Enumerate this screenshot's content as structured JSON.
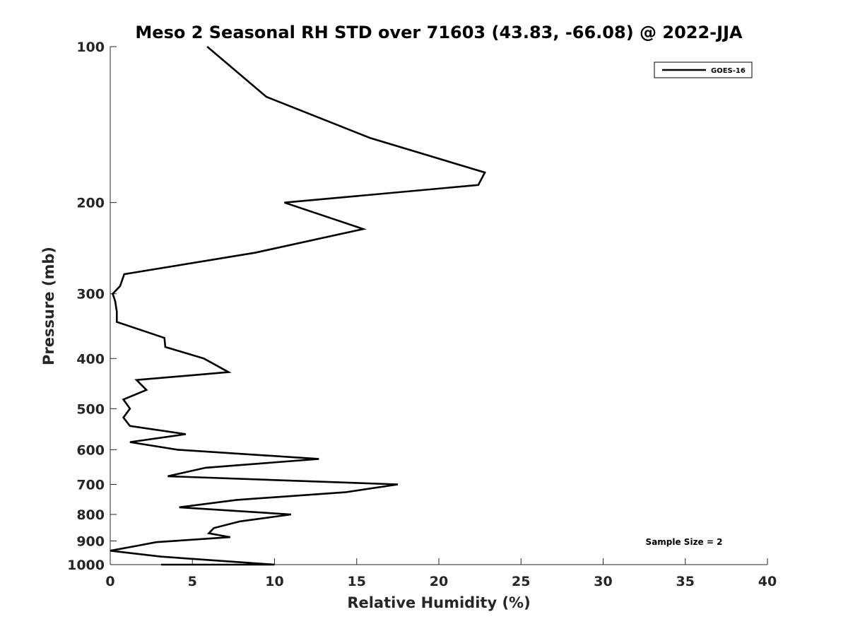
{
  "chart_data": {
    "type": "line",
    "title": "Meso 2 Seasonal RH STD over 71603 (43.83, -66.08) @ 2022-JJA",
    "xlabel": "Relative Humidity (%)",
    "ylabel": "Pressure (mb)",
    "xlim": [
      0,
      40
    ],
    "ylim": [
      100,
      1000
    ],
    "y_scale": "log",
    "y_reversed": true,
    "x_ticks": [
      0,
      5,
      10,
      15,
      20,
      25,
      30,
      35,
      40
    ],
    "y_ticks": [
      100,
      200,
      300,
      400,
      500,
      600,
      700,
      800,
      900,
      1000
    ],
    "grid": false,
    "legend": {
      "placement": "top-right",
      "entries": [
        "GOES-16"
      ]
    },
    "annotation": "Sample Size = 2",
    "series": [
      {
        "name": "GOES-16",
        "color": "#000000",
        "points": [
          [
            5.9,
            100
          ],
          [
            9.5,
            125
          ],
          [
            15.8,
            150
          ],
          [
            22.8,
            175
          ],
          [
            22.4,
            185
          ],
          [
            10.6,
            200
          ],
          [
            15.4,
            225
          ],
          [
            8.8,
            250
          ],
          [
            0.85,
            275
          ],
          [
            0.6,
            290
          ],
          [
            0.15,
            300
          ],
          [
            0.3,
            310
          ],
          [
            0.4,
            325
          ],
          [
            0.4,
            340
          ],
          [
            3.3,
            365
          ],
          [
            3.35,
            380
          ],
          [
            5.7,
            400
          ],
          [
            7.2,
            425
          ],
          [
            1.6,
            440
          ],
          [
            2.2,
            460
          ],
          [
            0.8,
            480
          ],
          [
            1.2,
            500
          ],
          [
            0.8,
            520
          ],
          [
            1.2,
            540
          ],
          [
            4.6,
            560
          ],
          [
            1.2,
            580
          ],
          [
            4.1,
            600
          ],
          [
            12.7,
            625
          ],
          [
            5.8,
            650
          ],
          [
            3.5,
            675
          ],
          [
            17.5,
            700
          ],
          [
            14.3,
            725
          ],
          [
            7.7,
            750
          ],
          [
            4.2,
            775
          ],
          [
            11.0,
            800
          ],
          [
            7.9,
            825
          ],
          [
            6.3,
            850
          ],
          [
            6.0,
            870
          ],
          [
            7.3,
            885
          ],
          [
            2.8,
            905
          ],
          [
            1.6,
            920
          ],
          [
            0.0,
            940
          ],
          [
            3.1,
            965
          ],
          [
            10.0,
            1000
          ],
          [
            3.1,
            1000
          ]
        ]
      }
    ]
  }
}
